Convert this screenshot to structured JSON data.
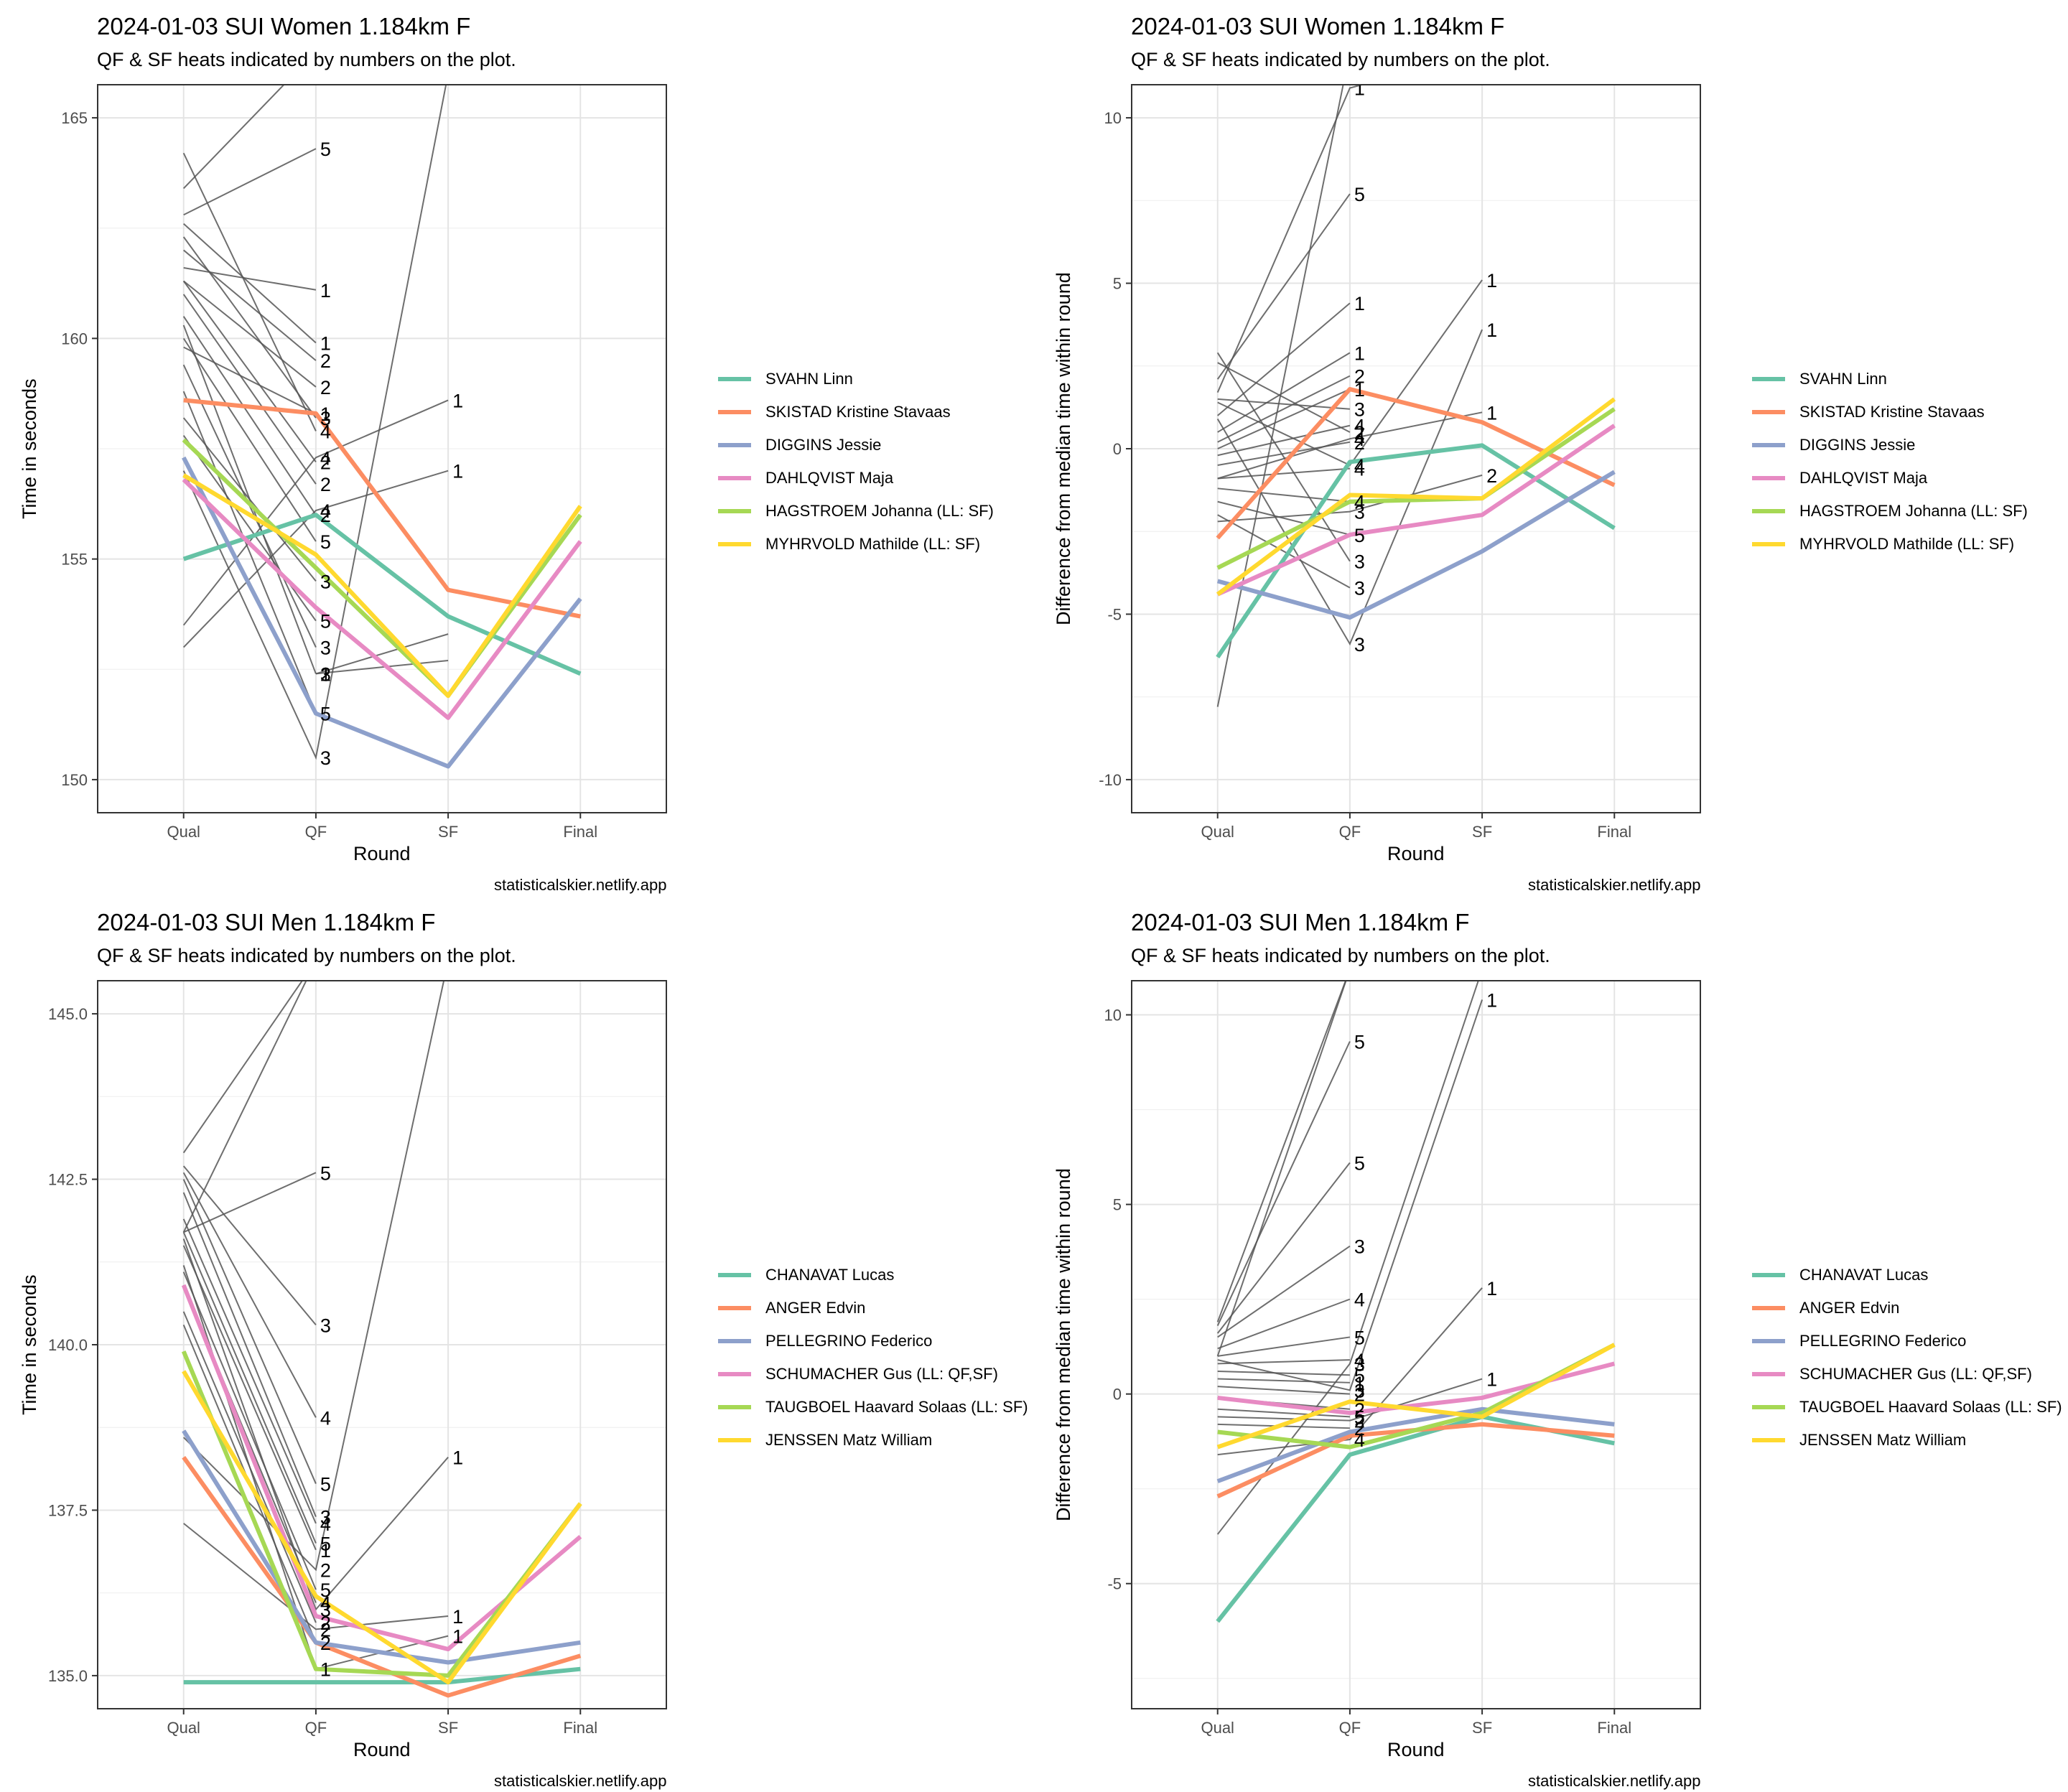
{
  "chart_data": [
    {
      "type": "line",
      "title": "2024-01-03 SUI Women 1.184km F",
      "subtitle": "QF & SF heats indicated by numbers on the plot.",
      "xlabel": "Round",
      "ylabel": "Time in seconds",
      "caption": "statisticalskier.netlify.app",
      "categories": [
        "Qual",
        "QF",
        "SF",
        "Final"
      ],
      "ylim": [
        149.25,
        165.75
      ],
      "yticks": [
        150,
        155,
        160,
        165
      ],
      "ytick_labels": [
        "150",
        "155",
        "160",
        "165"
      ],
      "grid": true,
      "legend_position": "right",
      "series": [
        {
          "name": "SVAHN Linn",
          "color": "#66C2A5",
          "values": [
            155.0,
            156.0,
            153.7,
            152.4
          ]
        },
        {
          "name": "SKISTAD Kristine Stavaas",
          "color": "#FC8D62",
          "values": [
            158.6,
            158.3,
            154.3,
            153.7
          ]
        },
        {
          "name": "DIGGINS Jessie",
          "color": "#8DA0CB",
          "values": [
            157.3,
            151.5,
            150.3,
            154.1
          ]
        },
        {
          "name": "DAHLQVIST Maja",
          "color": "#E78AC3",
          "values": [
            156.8,
            153.9,
            151.4,
            155.4
          ]
        },
        {
          "name": "HAGSTROEM Johanna (LL: SF)",
          "color": "#A6D854",
          "values": [
            157.7,
            154.8,
            151.9,
            156.0
          ]
        },
        {
          "name": "MYHRVOLD Mathilde (LL: SF)",
          "color": "#FFD92F",
          "values": [
            156.9,
            155.1,
            151.9,
            156.2
          ]
        }
      ],
      "other_athletes": [
        {
          "values": [
            164.2,
            157.9
          ],
          "heats": [
            "4"
          ]
        },
        {
          "values": [
            163.4,
            166.5
          ]
        },
        {
          "values": [
            162.8,
            164.3
          ],
          "heats": [
            "5"
          ]
        },
        {
          "values": [
            162.6,
            159.9
          ],
          "heats": [
            "1"
          ]
        },
        {
          "values": [
            162.3,
            158.2
          ],
          "heats": [
            "3"
          ]
        },
        {
          "values": [
            162.0,
            159.5
          ],
          "heats": [
            "2"
          ]
        },
        {
          "values": [
            161.6,
            161.1
          ],
          "heats": [
            "1"
          ]
        },
        {
          "values": [
            161.3,
            158.9
          ],
          "heats": [
            "2"
          ]
        },
        {
          "values": [
            161.3,
            157.2
          ],
          "heats": [
            "2"
          ]
        },
        {
          "values": [
            161.0,
            156.7
          ],
          "heats": [
            "2"
          ]
        },
        {
          "values": [
            160.5,
            156.0
          ],
          "heats": [
            "2"
          ]
        },
        {
          "values": [
            160.3,
            152.4
          ],
          "heats": [
            "3"
          ]
        },
        {
          "values": [
            160.0,
            155.4
          ],
          "heats": [
            "5"
          ]
        },
        {
          "values": [
            159.8,
            158.3
          ],
          "heats": [
            "1"
          ]
        },
        {
          "values": [
            159.4,
            153.0
          ],
          "heats": [
            "3"
          ]
        },
        {
          "values": [
            158.8,
            151.5
          ],
          "heats": [
            "5"
          ]
        },
        {
          "values": [
            158.2,
            154.5
          ],
          "heats": [
            "3"
          ]
        },
        {
          "values": [
            157.8,
            153.6
          ],
          "heats": [
            "5"
          ]
        },
        {
          "values": [
            157.0,
            150.5,
            166.0
          ],
          "heats": [
            "3"
          ]
        },
        {
          "values": [
            153.5,
            157.3,
            158.6
          ],
          "heats": [
            "4",
            "1"
          ]
        },
        {
          "values": [
            153.0,
            156.1,
            157.0
          ],
          "heats": [
            "4",
            "1"
          ]
        },
        {
          "values": [
            152.4,
            153.3
          ],
          "heats": [
            "3",
            "1"
          ],
          "from": 1
        },
        {
          "values": [
            152.4,
            152.7
          ],
          "heats": [
            "3",
            "2"
          ],
          "from": 1
        }
      ]
    },
    {
      "type": "line",
      "title": "2024-01-03 SUI Women 1.184km F",
      "subtitle": "QF & SF heats indicated by numbers on the plot.",
      "xlabel": "Round",
      "ylabel": "Difference from median time within round",
      "caption": "statisticalskier.netlify.app",
      "categories": [
        "Qual",
        "QF",
        "SF",
        "Final"
      ],
      "ylim": [
        -11,
        11
      ],
      "yticks": [
        -10,
        -5,
        0,
        5,
        10
      ],
      "ytick_labels": [
        "-10",
        "-5",
        "0",
        "5",
        "10"
      ],
      "grid": true,
      "legend_position": "right",
      "series": [
        {
          "name": "SVAHN Linn",
          "color": "#66C2A5",
          "values": [
            -6.3,
            -0.4,
            0.1,
            -2.4
          ]
        },
        {
          "name": "SKISTAD Kristine Stavaas",
          "color": "#FC8D62",
          "values": [
            -2.7,
            1.8,
            0.8,
            -1.1
          ]
        },
        {
          "name": "DIGGINS Jessie",
          "color": "#8DA0CB",
          "values": [
            -4.0,
            -5.1,
            -3.1,
            -0.7
          ]
        },
        {
          "name": "DAHLQVIST Maja",
          "color": "#E78AC3",
          "values": [
            -4.4,
            -2.6,
            -2.0,
            0.7
          ]
        },
        {
          "name": "HAGSTROEM Johanna (LL: SF)",
          "color": "#A6D854",
          "values": [
            -3.6,
            -1.6,
            -1.5,
            1.2
          ]
        },
        {
          "name": "MYHRVOLD Mathilde (LL: SF)",
          "color": "#FFD92F",
          "values": [
            -4.4,
            -1.4,
            -1.5,
            1.5
          ]
        }
      ],
      "other_athletes": [
        {
          "values": [
            2.9,
            -3.4
          ],
          "heats": [
            "3"
          ]
        },
        {
          "values": [
            2.1,
            7.7
          ],
          "heats": [
            "5"
          ]
        },
        {
          "values": [
            1.5,
            1.2
          ],
          "heats": [
            "3"
          ]
        },
        {
          "values": [
            1.0,
            4.4
          ],
          "heats": [
            "1"
          ]
        },
        {
          "values": [
            0.5,
            2.9
          ],
          "heats": [
            "1"
          ]
        },
        {
          "values": [
            0.2,
            2.2
          ],
          "heats": [
            "2"
          ]
        },
        {
          "values": [
            0.0,
            1.8
          ],
          "heats": [
            "1"
          ]
        },
        {
          "values": [
            -0.2,
            0.7
          ],
          "heats": [
            "4"
          ]
        },
        {
          "values": [
            -0.5,
            0.2
          ],
          "heats": [
            "2"
          ]
        },
        {
          "values": [
            -0.9,
            -0.6
          ],
          "heats": [
            "4"
          ]
        },
        {
          "values": [
            -1.2,
            -1.6
          ],
          "heats": [
            "4"
          ]
        },
        {
          "values": [
            -1.6,
            -2.6
          ],
          "heats": [
            "5"
          ]
        },
        {
          "values": [
            -2.0,
            -4.2
          ],
          "heats": [
            "3"
          ]
        },
        {
          "values": [
            2.6,
            0.5
          ],
          "heats": [
            "2"
          ]
        },
        {
          "values": [
            -7.8,
            12.0
          ]
        },
        {
          "values": [
            1.4,
            -0.5,
            5.1
          ],
          "heats": [
            "4",
            "1"
          ]
        },
        {
          "values": [
            0.9,
            -5.9,
            3.6
          ],
          "heats": [
            "3",
            "1"
          ]
        },
        {
          "values": [
            -0.9,
            0.3,
            1.1
          ],
          "heats": [
            "4",
            "1"
          ]
        },
        {
          "values": [
            -2.2,
            -1.9,
            -0.8
          ],
          "heats": [
            "3",
            "2"
          ]
        },
        {
          "values": [
            1.7,
            10.9,
            12.0
          ],
          "heats": [
            "1"
          ]
        }
      ]
    },
    {
      "type": "line",
      "title": "2024-01-03 SUI Men 1.184km F",
      "subtitle": "QF & SF heats indicated by numbers on the plot.",
      "xlabel": "Round",
      "ylabel": "Time in seconds",
      "caption": "statisticalskier.netlify.app",
      "categories": [
        "Qual",
        "QF",
        "SF",
        "Final"
      ],
      "ylim": [
        134.5,
        145.5
      ],
      "yticks": [
        135,
        137.5,
        140,
        142.5,
        145
      ],
      "ytick_labels": [
        "135.0",
        "137.5",
        "140.0",
        "142.5",
        "145.0"
      ],
      "grid": true,
      "legend_position": "right",
      "series": [
        {
          "name": "CHANAVAT Lucas",
          "color": "#66C2A5",
          "values": [
            134.9,
            134.9,
            134.9,
            135.1
          ]
        },
        {
          "name": "ANGER Edvin",
          "color": "#FC8D62",
          "values": [
            138.3,
            135.5,
            134.7,
            135.3
          ]
        },
        {
          "name": "PELLEGRINO Federico",
          "color": "#8DA0CB",
          "values": [
            138.7,
            135.5,
            135.2,
            135.5
          ]
        },
        {
          "name": "SCHUMACHER Gus (LL: QF,SF)",
          "color": "#E78AC3",
          "values": [
            140.9,
            135.9,
            135.4,
            137.1
          ]
        },
        {
          "name": "TAUGBOEL Haavard Solaas (LL: SF)",
          "color": "#A6D854",
          "values": [
            139.9,
            135.1,
            135.0,
            137.6
          ]
        },
        {
          "name": "JENSSEN Matz William",
          "color": "#FFD92F",
          "values": [
            139.6,
            136.2,
            134.9,
            137.6
          ]
        }
      ],
      "other_athletes": [
        {
          "values": [
            141.7,
            142.6
          ],
          "heats": [
            "5"
          ]
        },
        {
          "values": [
            142.7,
            140.3
          ],
          "heats": [
            "3"
          ]
        },
        {
          "values": [
            142.6,
            138.9
          ],
          "heats": [
            "4"
          ]
        },
        {
          "values": [
            142.5,
            137.9
          ],
          "heats": [
            "5"
          ]
        },
        {
          "values": [
            142.3,
            137.4
          ],
          "heats": [
            "3"
          ]
        },
        {
          "values": [
            141.9,
            137.3
          ],
          "heats": [
            "4"
          ]
        },
        {
          "values": [
            141.7,
            137.0
          ],
          "heats": [
            "5"
          ]
        },
        {
          "values": [
            141.5,
            136.9
          ],
          "heats": [
            "1"
          ]
        },
        {
          "values": [
            141.1,
            136.3
          ],
          "heats": [
            "5"
          ]
        },
        {
          "values": [
            140.9,
            136.1
          ],
          "heats": [
            "4"
          ]
        },
        {
          "values": [
            140.5,
            135.8
          ],
          "heats": [
            "2"
          ]
        },
        {
          "values": [
            140.3,
            135.5
          ],
          "heats": [
            "2"
          ]
        },
        {
          "values": [
            142.9,
            145.8
          ]
        },
        {
          "values": [
            141.7,
            145.8
          ]
        },
        {
          "values": [
            137.3,
            135.7,
            135.9
          ],
          "heats": [
            "2",
            "1"
          ]
        },
        {
          "values": [
            138.6,
            136.6,
            145.8
          ],
          "heats": [
            "2"
          ]
        },
        {
          "values": [
            141.6,
            136.0,
            138.3
          ],
          "heats": [
            "3",
            "1"
          ]
        },
        {
          "values": [
            141.2,
            135.1,
            135.6
          ],
          "heats": [
            "1",
            "1"
          ]
        }
      ]
    },
    {
      "type": "line",
      "title": "2024-01-03 SUI Men 1.184km F",
      "subtitle": "QF & SF heats indicated by numbers on the plot.",
      "xlabel": "Round",
      "ylabel": "Difference from median time within round",
      "caption": "statisticalskier.netlify.app",
      "categories": [
        "Qual",
        "QF",
        "SF",
        "Final"
      ],
      "ylim": [
        -8.3,
        10.9
      ],
      "yticks": [
        -5,
        0,
        5,
        10
      ],
      "ytick_labels": [
        "-5",
        "0",
        "5",
        "10"
      ],
      "grid": true,
      "legend_position": "right",
      "series": [
        {
          "name": "CHANAVAT Lucas",
          "color": "#66C2A5",
          "values": [
            -6.0,
            -1.6,
            -0.6,
            -1.3
          ]
        },
        {
          "name": "ANGER Edvin",
          "color": "#FC8D62",
          "values": [
            -2.7,
            -1.1,
            -0.8,
            -1.1
          ]
        },
        {
          "name": "PELLEGRINO Federico",
          "color": "#8DA0CB",
          "values": [
            -2.3,
            -1.0,
            -0.4,
            -0.8
          ]
        },
        {
          "name": "SCHUMACHER Gus (LL: QF,SF)",
          "color": "#E78AC3",
          "values": [
            -0.1,
            -0.5,
            -0.1,
            0.8
          ]
        },
        {
          "name": "TAUGBOEL Haavard Solaas (LL: SF)",
          "color": "#A6D854",
          "values": [
            -1.0,
            -1.4,
            -0.5,
            1.3
          ]
        },
        {
          "name": "JENSSEN Matz William",
          "color": "#FFD92F",
          "values": [
            -1.4,
            -0.2,
            -0.6,
            1.3
          ]
        }
      ],
      "other_athletes": [
        {
          "values": [
            1.8,
            9.3
          ],
          "heats": [
            "5"
          ]
        },
        {
          "values": [
            1.6,
            6.1
          ],
          "heats": [
            "5"
          ]
        },
        {
          "values": [
            1.5,
            3.9
          ],
          "heats": [
            "3"
          ]
        },
        {
          "values": [
            1.2,
            2.5
          ],
          "heats": [
            "4"
          ]
        },
        {
          "values": [
            1.0,
            1.5
          ],
          "heats": [
            "5"
          ]
        },
        {
          "values": [
            0.8,
            0.9
          ],
          "heats": [
            "4"
          ]
        },
        {
          "values": [
            0.6,
            0.5
          ],
          "heats": [
            "5"
          ]
        },
        {
          "values": [
            0.4,
            0.3
          ],
          "heats": [
            "1"
          ]
        },
        {
          "values": [
            0.2,
            0.0
          ],
          "heats": [
            "2"
          ]
        },
        {
          "values": [
            -0.1,
            -0.4
          ],
          "heats": [
            "2"
          ]
        },
        {
          "values": [
            -0.4,
            -0.6
          ],
          "heats": [
            "5"
          ]
        },
        {
          "values": [
            -0.8,
            -0.9
          ],
          "heats": [
            "2"
          ]
        },
        {
          "values": [
            1.9,
            11.2
          ]
        },
        {
          "values": [
            1.0,
            11.2
          ]
        },
        {
          "values": [
            -3.7,
            0.8,
            11.2
          ],
          "heats": [
            "3"
          ]
        },
        {
          "values": [
            -1.6,
            -1.2,
            2.8
          ],
          "heats": [
            "4",
            "1"
          ]
        },
        {
          "values": [
            0.9,
            0.1,
            10.4
          ],
          "heats": [
            "3",
            "1"
          ]
        },
        {
          "values": [
            -0.6,
            -0.7,
            0.4
          ],
          "heats": [
            "2",
            "1"
          ]
        }
      ]
    }
  ]
}
